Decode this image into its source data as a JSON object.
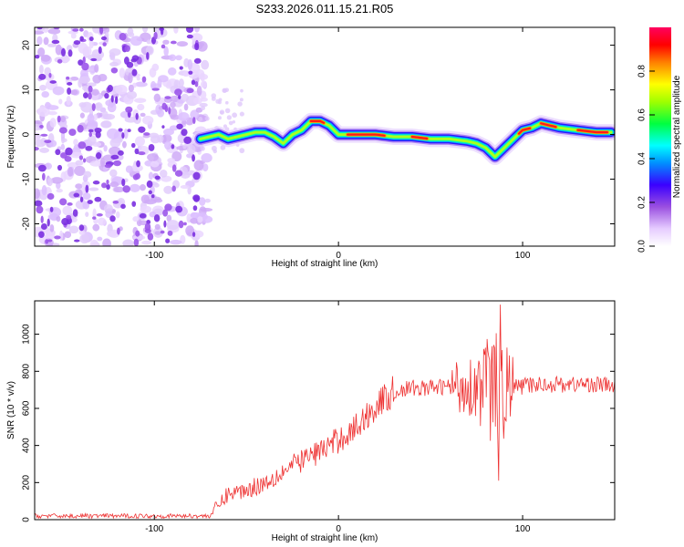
{
  "title": "S233.2026.011.15.21.R05",
  "chart_data": [
    {
      "type": "heatmap",
      "title": "",
      "xlabel": "Height of straight line (km)",
      "ylabel": "Frequency (Hz)",
      "xlim": [
        -165,
        150
      ],
      "ylim": [
        -25,
        24
      ],
      "xticks": [
        -100,
        0,
        100
      ],
      "yticks": [
        -20,
        -10,
        0,
        10,
        20
      ],
      "colorbar": {
        "label": "Normalized spectral amplitude",
        "range": [
          0,
          1
        ],
        "ticks": [
          0.0,
          0.2,
          0.4,
          0.6,
          0.8
        ],
        "colors": [
          "#ffffff",
          "#e0c0ff",
          "#9a4fe0",
          "#4a00ff",
          "#00a0ff",
          "#00ffff",
          "#00ff40",
          "#a0ff00",
          "#ffff00",
          "#ff8000",
          "#ff0000",
          "#ff0060"
        ]
      },
      "noise_region_x": [
        -165,
        -75
      ],
      "signal_ridge": {
        "x": [
          -75,
          -70,
          -65,
          -60,
          -55,
          -50,
          -45,
          -40,
          -35,
          -30,
          -25,
          -20,
          -15,
          -10,
          -5,
          0,
          10,
          20,
          30,
          40,
          50,
          60,
          70,
          75,
          80,
          85,
          90,
          95,
          100,
          105,
          110,
          120,
          130,
          140,
          148
        ],
        "freq": [
          -1,
          -0.5,
          0,
          -1,
          -0.5,
          0,
          0.5,
          0.5,
          -0.5,
          -2,
          0,
          1,
          3,
          3,
          2,
          0,
          0,
          0,
          -0.5,
          -0.5,
          -1,
          -1,
          -1.5,
          -2,
          -3,
          -5,
          -3,
          -1,
          1,
          1.5,
          2.5,
          1.5,
          1,
          0.5,
          0.5
        ],
        "peak_segments": [
          [
            -15,
            -8
          ],
          [
            5,
            25
          ],
          [
            40,
            48
          ],
          [
            98,
            104
          ],
          [
            110,
            118
          ],
          [
            130,
            146
          ]
        ]
      }
    },
    {
      "type": "line",
      "title": "",
      "xlabel": "Height of straight line (km)",
      "ylabel": "SNR (10 * v/v)",
      "xlim": [
        -165,
        150
      ],
      "ylim": [
        0,
        1180
      ],
      "xticks": [
        -100,
        0,
        100
      ],
      "yticks": [
        0,
        200,
        400,
        600,
        800,
        1000
      ],
      "series": [
        {
          "name": "SNR",
          "color": "#ee3333",
          "trend_x": [
            -165,
            -70,
            -68,
            -60,
            -50,
            -40,
            -30,
            -20,
            -10,
            0,
            10,
            20,
            30,
            40,
            50,
            60,
            70,
            80,
            90,
            100,
            110,
            120,
            130,
            140,
            150
          ],
          "trend_y": [
            20,
            20,
            40,
            140,
            160,
            200,
            260,
            320,
            370,
            430,
            500,
            610,
            690,
            710,
            710,
            720,
            720,
            720,
            710,
            720,
            730,
            730,
            730,
            730,
            720
          ],
          "extrema": {
            "max": 1160,
            "max_at_x": 88,
            "min": 210,
            "min_at_x": 87
          }
        }
      ]
    }
  ]
}
